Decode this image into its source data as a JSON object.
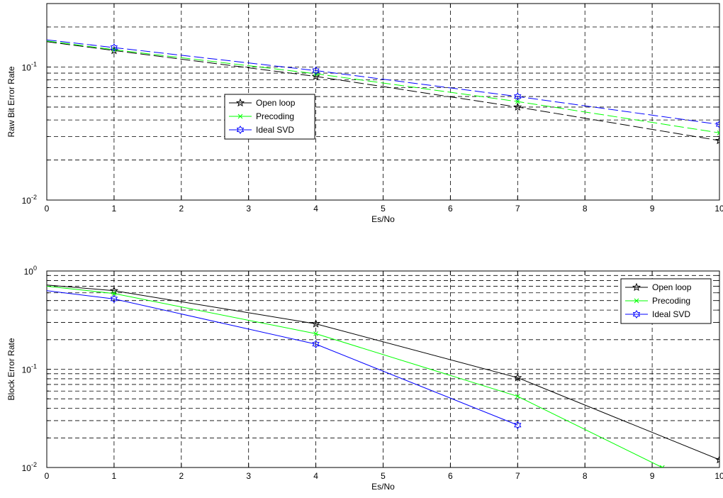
{
  "chart_data": [
    {
      "type": "line",
      "title": "",
      "xlabel": "Es/No",
      "ylabel": "Raw Bit Error Rate",
      "yscale": "log",
      "xlim": [
        0,
        10
      ],
      "ylim": [
        0.01,
        0.3
      ],
      "grid": true,
      "legend_position": "center-left",
      "x_ticks": [
        "0",
        "1",
        "2",
        "3",
        "4",
        "5",
        "6",
        "7",
        "8",
        "9",
        "10"
      ],
      "y_ticks": [
        {
          "value": 0.01,
          "base": "10",
          "exp": "-2"
        },
        {
          "value": 0.1,
          "base": "10",
          "exp": "-1"
        }
      ],
      "series": [
        {
          "name": "Open loop",
          "color": "#000000",
          "marker": "star",
          "dash": true,
          "x": [
            0,
            1,
            4,
            7,
            10
          ],
          "y": [
            0.155,
            0.133,
            0.085,
            0.05,
            0.028
          ]
        },
        {
          "name": "Precoding",
          "color": "#00ff00",
          "marker": "x",
          "dash": true,
          "x": [
            0,
            1,
            4,
            7,
            10
          ],
          "y": [
            0.157,
            0.135,
            0.089,
            0.055,
            0.032
          ]
        },
        {
          "name": "Ideal SVD",
          "color": "#0000ff",
          "marker": "hexagram",
          "dash": true,
          "x": [
            0,
            1,
            4,
            7,
            10
          ],
          "y": [
            0.16,
            0.14,
            0.094,
            0.06,
            0.037
          ]
        }
      ]
    },
    {
      "type": "line",
      "title": "",
      "xlabel": "Es/No",
      "ylabel": "Block Error Rate",
      "yscale": "log",
      "xlim": [
        0,
        10
      ],
      "ylim": [
        0.01,
        1
      ],
      "grid": true,
      "legend_position": "top-right",
      "x_ticks": [
        "0",
        "1",
        "2",
        "3",
        "4",
        "5",
        "6",
        "7",
        "8",
        "9",
        "10"
      ],
      "y_ticks": [
        {
          "value": 0.01,
          "base": "10",
          "exp": "-2"
        },
        {
          "value": 0.1,
          "base": "10",
          "exp": "-1"
        },
        {
          "value": 1,
          "base": "10",
          "exp": "0"
        }
      ],
      "series": [
        {
          "name": "Open loop",
          "color": "#000000",
          "marker": "star",
          "dash": false,
          "x": [
            0,
            1,
            4,
            7,
            10
          ],
          "y": [
            0.72,
            0.63,
            0.29,
            0.082,
            0.012
          ]
        },
        {
          "name": "Precoding",
          "color": "#00ff00",
          "marker": "x",
          "dash": false,
          "x": [
            0,
            1,
            4,
            7,
            9.15
          ],
          "y": [
            0.7,
            0.59,
            0.23,
            0.053,
            0.01
          ]
        },
        {
          "name": "Ideal SVD",
          "color": "#0000ff",
          "marker": "hexagram",
          "dash": false,
          "x": [
            0,
            1,
            4,
            7
          ],
          "y": [
            0.63,
            0.52,
            0.18,
            0.027
          ]
        }
      ]
    }
  ]
}
